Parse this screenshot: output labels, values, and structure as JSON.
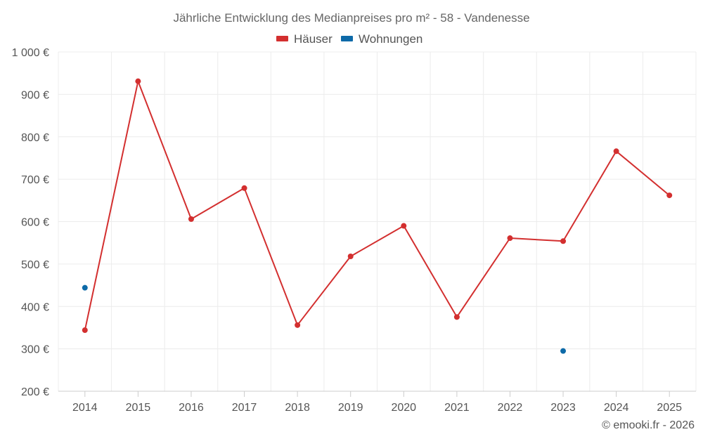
{
  "chart_data": {
    "type": "line",
    "title": "Jährliche Entwicklung des Medianpreises pro m² - 58 - Vandenesse",
    "categories": [
      "2014",
      "2015",
      "2016",
      "2017",
      "2018",
      "2019",
      "2020",
      "2021",
      "2022",
      "2023",
      "2024",
      "2025"
    ],
    "series": [
      {
        "name": "Häuser",
        "color": "#d32f2f",
        "values": [
          344,
          931,
          606,
          679,
          356,
          518,
          590,
          375,
          561,
          554,
          766,
          662
        ]
      },
      {
        "name": "Wohnungen",
        "color": "#0d6aa8",
        "values": [
          444,
          null,
          null,
          null,
          null,
          null,
          null,
          null,
          null,
          295,
          null,
          null
        ]
      }
    ],
    "ylim": [
      200,
      1000
    ],
    "yticks": [
      200,
      300,
      400,
      500,
      600,
      700,
      800,
      900,
      1000
    ],
    "ytick_labels": [
      "200 €",
      "300 €",
      "400 €",
      "500 €",
      "600 €",
      "700 €",
      "800 €",
      "900 €",
      "1 000 €"
    ],
    "grid": true,
    "legend_position": "top-center",
    "xlabel": "",
    "ylabel": ""
  },
  "credit": "© emooki.fr - 2026"
}
